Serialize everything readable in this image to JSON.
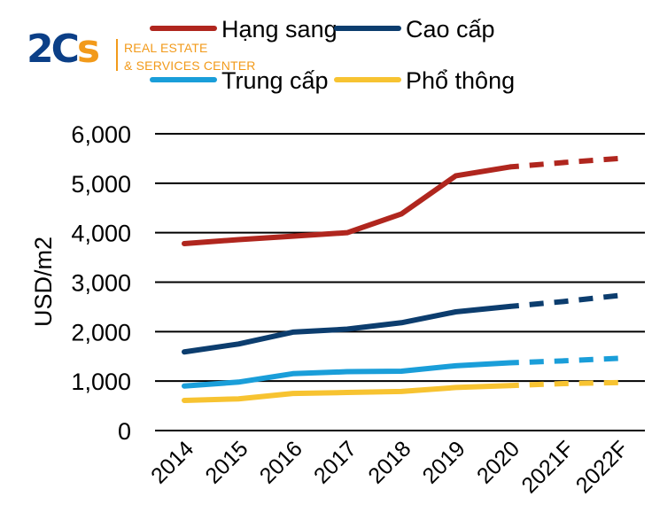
{
  "logo": {
    "mark_2": "2",
    "mark_c": "C",
    "mark_s": "s",
    "line1": "REAL ESTATE",
    "line2": "& SERVICES CENTER",
    "colors": {
      "primary": "#0b3f87",
      "accent": "#f29a1a"
    }
  },
  "chart_data": {
    "type": "line",
    "title": "",
    "xlabel": "",
    "ylabel": "USD/m2",
    "categories": [
      "2014",
      "2015",
      "2016",
      "2017",
      "2018",
      "2019",
      "2020",
      "2021F",
      "2022F"
    ],
    "forecast_from_index": 7,
    "ylim": [
      0,
      6000
    ],
    "yticks": [
      0,
      1000,
      2000,
      3000,
      4000,
      5000,
      6000
    ],
    "ytick_labels": [
      "0",
      "1,000",
      "2,000",
      "3,000",
      "4,000",
      "5,000",
      "6,000"
    ],
    "grid": true,
    "legend_position": "top",
    "series": [
      {
        "name": "Hạng sang",
        "color": "#b0261e",
        "values": [
          3780,
          3860,
          3930,
          4000,
          4380,
          5150,
          5330,
          5420,
          5500
        ]
      },
      {
        "name": "Cao cấp",
        "color": "#0c3d6e",
        "values": [
          1590,
          1750,
          1990,
          2050,
          2180,
          2400,
          2510,
          2610,
          2730
        ]
      },
      {
        "name": "Trung cấp",
        "color": "#1a9ed9",
        "values": [
          900,
          980,
          1150,
          1190,
          1200,
          1310,
          1370,
          1410,
          1460
        ]
      },
      {
        "name": "Phổ thông",
        "color": "#f7c331",
        "values": [
          610,
          640,
          750,
          770,
          790,
          870,
          910,
          950,
          970
        ]
      }
    ]
  }
}
